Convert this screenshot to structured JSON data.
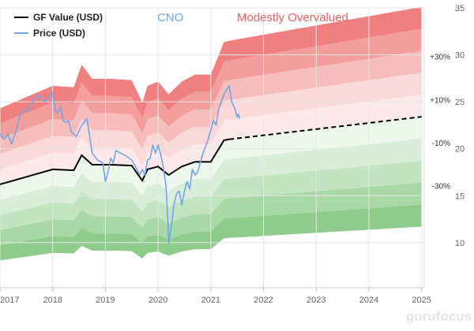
{
  "chart_data": {
    "type": "area",
    "title": "CNO",
    "valuation_label": "Modestly Overvalued",
    "watermark": "gurufocus",
    "legend": {
      "placement": "top-left",
      "entries": [
        {
          "name": "GF Value (USD)",
          "color": "#000000"
        },
        {
          "name": "Price (USD)",
          "color": "#6fa8e8"
        }
      ]
    },
    "x_axis": {
      "tick_labels": [
        "2017",
        "2018",
        "2019",
        "2020",
        "2021",
        "2022",
        "2023",
        "2024",
        "2025"
      ],
      "ticks": [
        2017,
        2018,
        2019,
        2020,
        2021,
        2022,
        2023,
        2024,
        2025
      ],
      "range": [
        2017,
        2025.05
      ]
    },
    "y_axis": {
      "position": "right",
      "range": [
        5.2,
        35
      ],
      "tick_labels": [
        "35",
        "30",
        "25",
        "20",
        "15",
        "10"
      ],
      "ticks": [
        35,
        30,
        25,
        20,
        15,
        10
      ],
      "grid": true
    },
    "band_labels": [
      "+30%",
      "+10%",
      "-10%",
      "-30%"
    ],
    "band_label_levels": [
      1.3,
      1.1,
      0.9,
      0.7
    ],
    "band_multipliers": [
      1.5,
      1.4,
      1.3,
      1.2,
      1.1,
      1.0,
      0.9,
      0.8,
      0.7,
      0.6,
      0.5
    ],
    "band_colors": {
      "upper": [
        "#f08080",
        "#f39d9d",
        "#f7bcbc",
        "#fbd9d9",
        "#fde9e9"
      ],
      "lower": [
        "#edf7ec",
        "#d9eed8",
        "#c3e4c1",
        "#a8d8a5",
        "#8fcb8b"
      ]
    },
    "gf_value": {
      "name": "GF Value (USD)",
      "dashed_from": 2021.35,
      "x": [
        2017,
        2017.5,
        2018,
        2018.4,
        2018.55,
        2018.75,
        2019.1,
        2019.5,
        2019.7,
        2019.8,
        2020.0,
        2020.2,
        2020.45,
        2020.7,
        2021.0,
        2021.25,
        2021.35,
        2025
      ],
      "y": [
        16.2,
        17.0,
        17.8,
        17.7,
        19.3,
        18.3,
        18.3,
        18.2,
        16.6,
        17.8,
        18.1,
        17.2,
        18.1,
        18.6,
        18.6,
        20.9,
        21.0,
        23.4
      ]
    },
    "price": {
      "name": "Price (USD)",
      "x": [
        2017,
        2017.08,
        2017.15,
        2017.22,
        2017.3,
        2017.38,
        2017.45,
        2017.55,
        2017.62,
        2017.7,
        2017.78,
        2017.85,
        2017.92,
        2018.0,
        2018.05,
        2018.1,
        2018.15,
        2018.2,
        2018.25,
        2018.3,
        2018.35,
        2018.45,
        2018.55,
        2018.65,
        2018.75,
        2018.85,
        2018.95,
        2019.0,
        2019.05,
        2019.1,
        2019.15,
        2019.2,
        2019.3,
        2019.4,
        2019.5,
        2019.6,
        2019.65,
        2019.7,
        2019.75,
        2019.8,
        2019.85,
        2019.9,
        2019.95,
        2020.0,
        2020.05,
        2020.1,
        2020.15,
        2020.18,
        2020.2,
        2020.23,
        2020.27,
        2020.3,
        2020.35,
        2020.4,
        2020.45,
        2020.5,
        2020.55,
        2020.6,
        2020.65,
        2020.7,
        2020.75,
        2020.8,
        2020.85,
        2020.9,
        2020.95,
        2021.0,
        2021.05,
        2021.1,
        2021.15,
        2021.2,
        2021.25,
        2021.3,
        2021.35,
        2021.4,
        2021.45,
        2021.5,
        2021.52,
        2021.55
      ],
      "y": [
        21.6,
        21.0,
        21.5,
        20.5,
        21.8,
        23.6,
        24.0,
        24.2,
        25.0,
        25.7,
        25.5,
        25.0,
        25.4,
        26.0,
        24.0,
        23.8,
        24.5,
        23.0,
        22.8,
        23.0,
        21.8,
        21.3,
        22.5,
        23.2,
        19.5,
        18.8,
        18.5,
        16.5,
        17.5,
        19.0,
        18.5,
        19.8,
        19.5,
        19.2,
        18.8,
        17.8,
        17.2,
        17.8,
        17.2,
        18.8,
        19.0,
        20.4,
        19.5,
        20.4,
        19.4,
        18.0,
        16.0,
        13.0,
        10.0,
        11.0,
        12.5,
        14.0,
        15.2,
        15.5,
        14.0,
        15.5,
        16.5,
        15.7,
        17.8,
        17.2,
        17.5,
        18.5,
        19.5,
        20.2,
        21.0,
        22.0,
        23.0,
        22.5,
        24.2,
        25.0,
        25.8,
        26.3,
        26.7,
        24.9,
        24.4,
        23.4,
        23.7,
        23.2
      ]
    }
  }
}
